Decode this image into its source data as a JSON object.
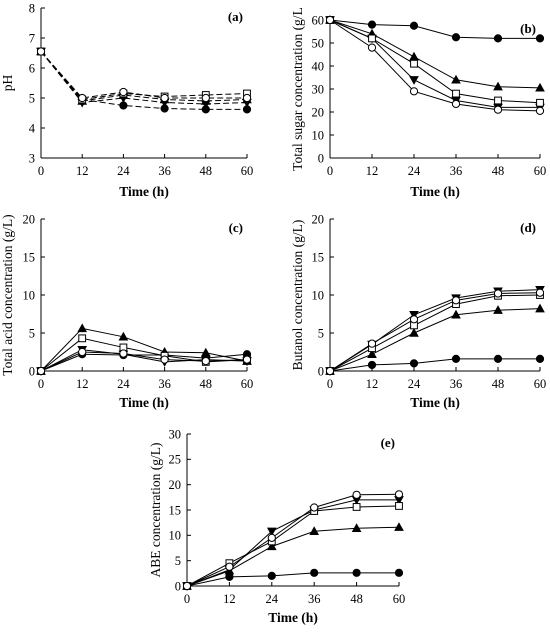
{
  "marker_styles": {
    "circle_filled": {
      "shape": "circle",
      "fill": "#000000"
    },
    "triangle_up_filled": {
      "shape": "triangle-up",
      "fill": "#000000"
    },
    "triangle_down_filled": {
      "shape": "triangle-down",
      "fill": "#000000"
    },
    "square_open": {
      "shape": "square",
      "fill": "#ffffff"
    },
    "circle_open": {
      "shape": "circle",
      "fill": "#ffffff"
    }
  },
  "chart_data": [
    {
      "panel": "(a)",
      "type": "line",
      "line_style": "dashed",
      "xlabel": "Time (h)",
      "ylabel": "pH",
      "x": [
        0,
        12,
        24,
        36,
        48,
        60
      ],
      "xlim": [
        0,
        60
      ],
      "ylim": [
        3,
        8
      ],
      "xticks": [
        "0",
        "12",
        "24",
        "36",
        "48",
        "60"
      ],
      "yticks": [
        "3",
        "4",
        "5",
        "6",
        "7",
        "8"
      ],
      "grid": false,
      "series": [
        {
          "marker": "circle_filled",
          "values": [
            6.55,
            4.95,
            4.75,
            4.65,
            4.62,
            4.62
          ]
        },
        {
          "marker": "triangle_up_filled",
          "values": [
            6.55,
            4.9,
            5.1,
            4.95,
            4.9,
            4.95
          ]
        },
        {
          "marker": "triangle_down_filled",
          "values": [
            6.55,
            4.85,
            5.0,
            4.85,
            4.8,
            4.85
          ]
        },
        {
          "marker": "square_open",
          "values": [
            6.55,
            4.95,
            5.15,
            5.05,
            5.1,
            5.15
          ]
        },
        {
          "marker": "circle_open",
          "values": [
            6.55,
            5.0,
            5.2,
            5.0,
            5.0,
            5.0
          ]
        }
      ]
    },
    {
      "panel": "(b)",
      "type": "line",
      "line_style": "solid",
      "xlabel": "Time (h)",
      "ylabel": "Total sugar concentration (g/L",
      "x": [
        0,
        12,
        24,
        36,
        48,
        60
      ],
      "xlim": [
        0,
        60
      ],
      "ylim": [
        0,
        60
      ],
      "xticks": [
        "0",
        "12",
        "24",
        "36",
        "48",
        "60"
      ],
      "yticks": [
        "0",
        "10",
        "20",
        "30",
        "40",
        "50",
        "60"
      ],
      "grid": false,
      "series": [
        {
          "marker": "circle_filled",
          "values": [
            60,
            58,
            57.5,
            52.5,
            52,
            52
          ]
        },
        {
          "marker": "triangle_up_filled",
          "values": [
            60,
            54,
            44,
            34,
            31,
            30.5
          ]
        },
        {
          "marker": "triangle_down_filled",
          "values": [
            60,
            52,
            34,
            25,
            22,
            22
          ]
        },
        {
          "marker": "square_open",
          "values": [
            60,
            52,
            41,
            28,
            25,
            24
          ]
        },
        {
          "marker": "circle_open",
          "values": [
            60,
            48,
            29,
            23.5,
            21,
            20.5
          ]
        }
      ]
    },
    {
      "panel": "(c)",
      "type": "line",
      "line_style": "solid",
      "xlabel": "Time (h)",
      "ylabel": "Total acid concentration (g/L)",
      "x": [
        0,
        12,
        24,
        36,
        48,
        60
      ],
      "xlim": [
        0,
        60
      ],
      "ylim": [
        0,
        20
      ],
      "xticks": [
        "0",
        "12",
        "24",
        "36",
        "48",
        "60"
      ],
      "yticks": [
        "0",
        "5",
        "10",
        "15",
        "20"
      ],
      "grid": false,
      "series": [
        {
          "marker": "circle_filled",
          "values": [
            0,
            2.2,
            2.1,
            2.1,
            1.7,
            2.2
          ]
        },
        {
          "marker": "triangle_up_filled",
          "values": [
            0,
            5.6,
            4.5,
            2.5,
            2.4,
            1.3
          ]
        },
        {
          "marker": "triangle_down_filled",
          "values": [
            0,
            2.8,
            2.2,
            1.2,
            1.5,
            1.3
          ]
        },
        {
          "marker": "square_open",
          "values": [
            0,
            4.3,
            3.1,
            2.0,
            1.2,
            1.5
          ]
        },
        {
          "marker": "circle_open",
          "values": [
            0,
            2.5,
            2.3,
            1.5,
            1.3,
            1.5
          ]
        }
      ]
    },
    {
      "panel": "(d)",
      "type": "line",
      "line_style": "solid",
      "xlabel": "Time (h)",
      "ylabel": "Butanol concentration (g/L)",
      "x": [
        0,
        12,
        24,
        36,
        48,
        60
      ],
      "xlim": [
        0,
        60
      ],
      "ylim": [
        0,
        20
      ],
      "xticks": [
        "0",
        "12",
        "24",
        "36",
        "48",
        "60"
      ],
      "yticks": [
        "0",
        "5",
        "10",
        "15",
        "20"
      ],
      "grid": false,
      "series": [
        {
          "marker": "circle_filled",
          "values": [
            0,
            0.8,
            1.0,
            1.6,
            1.6,
            1.6
          ]
        },
        {
          "marker": "triangle_up_filled",
          "values": [
            0,
            2.2,
            5.0,
            7.4,
            8.0,
            8.2
          ]
        },
        {
          "marker": "triangle_down_filled",
          "values": [
            0,
            3.5,
            7.4,
            9.6,
            10.5,
            10.7
          ]
        },
        {
          "marker": "square_open",
          "values": [
            0,
            3.0,
            6.0,
            8.8,
            9.9,
            10.0
          ]
        },
        {
          "marker": "circle_open",
          "values": [
            0,
            3.6,
            6.8,
            9.3,
            10.2,
            10.3
          ]
        }
      ]
    },
    {
      "panel": "(e)",
      "type": "line",
      "line_style": "solid",
      "xlabel": "Time (h)",
      "ylabel": "ABE concentration (g/L)",
      "x": [
        0,
        12,
        24,
        36,
        48,
        60
      ],
      "xlim": [
        0,
        60
      ],
      "ylim": [
        0,
        30
      ],
      "xticks": [
        "0",
        "12",
        "24",
        "36",
        "48",
        "60"
      ],
      "yticks": [
        "0",
        "5",
        "10",
        "15",
        "20",
        "25",
        "30"
      ],
      "grid": false,
      "series": [
        {
          "marker": "circle_filled",
          "values": [
            0,
            1.8,
            2.0,
            2.6,
            2.6,
            2.6
          ]
        },
        {
          "marker": "triangle_up_filled",
          "values": [
            0,
            3.0,
            7.8,
            10.8,
            11.4,
            11.6
          ]
        },
        {
          "marker": "triangle_down_filled",
          "values": [
            0,
            3.2,
            10.8,
            15.0,
            17.0,
            17.0
          ]
        },
        {
          "marker": "square_open",
          "values": [
            0,
            4.5,
            8.8,
            14.8,
            15.6,
            15.8
          ]
        },
        {
          "marker": "circle_open",
          "values": [
            0,
            3.8,
            9.5,
            15.5,
            18.0,
            18.1
          ]
        }
      ]
    }
  ]
}
